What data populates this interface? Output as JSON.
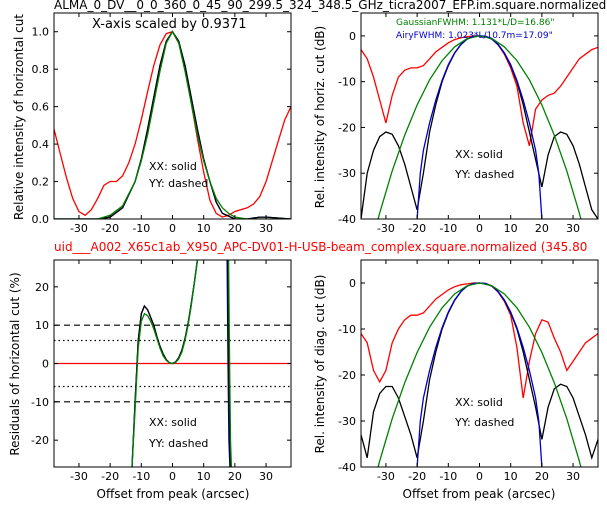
{
  "figure": {
    "top_title": "ALMA_0_DV__0_0_360_0_45_90_299.5_324_348.5_GHz_ticra2007_EFP.im.square.normalized",
    "bottom_title": "uid___A002_X65c1ab_X950_APC-DV01-H-USB-beam_complex.square.normalized (345.80",
    "colors": {
      "red": "#ff0000",
      "blue": "#0000cc",
      "green": "#008000",
      "black": "#000000",
      "title_red": "#ff0000"
    }
  },
  "chart_data": [
    {
      "type": "line",
      "panel": "top-left",
      "xlabel": "",
      "ylabel": "Relative intensity of horizontal cut",
      "xlim": [
        -38,
        38
      ],
      "ylim": [
        0,
        1.1
      ],
      "xticks": [
        "-30",
        "-20",
        "-10",
        "0",
        "10",
        "20",
        "30"
      ],
      "yticks": [
        "0.0",
        "0.2",
        "0.4",
        "0.6",
        "0.8",
        "1.0"
      ],
      "annotations": [
        "X-axis scaled by 0.9371",
        "XX: solid",
        "YY: dashed"
      ],
      "series": [
        {
          "color": "red",
          "x": [
            -38,
            -36,
            -34,
            -32,
            -30,
            -28,
            -26,
            -24,
            -22,
            -20,
            -18,
            -16,
            -14,
            -12,
            -10,
            -8,
            -6,
            -4,
            -2,
            0,
            2,
            4,
            6,
            8,
            10,
            12,
            14,
            16,
            18,
            20,
            22,
            24,
            26,
            28,
            30,
            32,
            34,
            36,
            38
          ],
          "y": [
            0.48,
            0.35,
            0.22,
            0.11,
            0.04,
            0.02,
            0.05,
            0.11,
            0.18,
            0.2,
            0.2,
            0.23,
            0.3,
            0.4,
            0.53,
            0.68,
            0.82,
            0.93,
            0.99,
            1.0,
            0.94,
            0.82,
            0.62,
            0.43,
            0.25,
            0.1,
            0.03,
            0.01,
            0.02,
            0.04,
            0.05,
            0.06,
            0.08,
            0.12,
            0.2,
            0.31,
            0.42,
            0.53,
            0.6
          ]
        },
        {
          "color": "blue",
          "x": [
            -38,
            -30,
            -24,
            -20,
            -16,
            -12,
            -10,
            -8,
            -6,
            -4,
            -2,
            0,
            2,
            4,
            6,
            8,
            10,
            12,
            14,
            16,
            20,
            24,
            28,
            30,
            38
          ],
          "y": [
            0,
            0,
            0.0,
            0.01,
            0.06,
            0.2,
            0.32,
            0.48,
            0.65,
            0.82,
            0.95,
            1.0,
            0.95,
            0.82,
            0.65,
            0.48,
            0.32,
            0.2,
            0.09,
            0.03,
            0.0,
            0.0,
            0.01,
            0.01,
            0
          ]
        },
        {
          "color": "black",
          "x": [
            -38,
            -30,
            -24,
            -20,
            -16,
            -12,
            -10,
            -8,
            -6,
            -4,
            -2,
            0,
            2,
            4,
            6,
            8,
            10,
            12,
            14,
            16,
            20,
            24,
            28,
            30,
            38
          ],
          "y": [
            0,
            0,
            0.0,
            0.01,
            0.06,
            0.2,
            0.32,
            0.48,
            0.65,
            0.82,
            0.95,
            1.0,
            0.95,
            0.82,
            0.65,
            0.48,
            0.32,
            0.2,
            0.09,
            0.03,
            0.0,
            0.0,
            0.01,
            0.01,
            0
          ]
        },
        {
          "color": "green",
          "x": [
            -38,
            -28,
            -24,
            -20,
            -16,
            -12,
            -10,
            -8,
            -6,
            -4,
            -2,
            0,
            2,
            4,
            6,
            8,
            10,
            12,
            14,
            16,
            18,
            20,
            24,
            28,
            38
          ],
          "y": [
            0,
            0,
            0.0,
            0.02,
            0.07,
            0.2,
            0.31,
            0.45,
            0.62,
            0.79,
            0.94,
            1.0,
            0.94,
            0.79,
            0.62,
            0.45,
            0.31,
            0.2,
            0.11,
            0.06,
            0.03,
            0.01,
            0.0,
            0.0,
            0
          ]
        }
      ]
    },
    {
      "type": "line",
      "panel": "top-right",
      "xlabel": "",
      "ylabel": "Rel. intensity of horiz. cut (dB)",
      "xlim": [
        -38,
        38
      ],
      "ylim": [
        -40,
        5
      ],
      "xticks": [
        "-30",
        "-20",
        "-10",
        "0",
        "10",
        "20",
        "30"
      ],
      "yticks": [
        "-40",
        "-30",
        "-20",
        "-10",
        "0"
      ],
      "annotations": [
        "GaussianFWHM: 1.131*L/D=16.86\"",
        "AiryFWHM: 1.023*L/10.7m=17.09\"",
        "XX: solid",
        "YY: dashed"
      ],
      "series": [
        {
          "color": "red",
          "x": [
            -38,
            -36,
            -34,
            -32,
            -30,
            -28,
            -26,
            -24,
            -22,
            -20,
            -18,
            -16,
            -14,
            -12,
            -10,
            -8,
            -6,
            -4,
            -2,
            0,
            2,
            4,
            6,
            8,
            10,
            12,
            14,
            16,
            18,
            20,
            22,
            24,
            26,
            28,
            30,
            32,
            34,
            36,
            38
          ],
          "y": [
            -3,
            -5,
            -9,
            -14,
            -19,
            -13,
            -9,
            -7.5,
            -7,
            -7,
            -6.5,
            -5,
            -3.5,
            -2.5,
            -1.5,
            -0.8,
            -0.4,
            -0.2,
            0,
            0,
            -0.2,
            -0.7,
            -2,
            -4,
            -7,
            -11,
            -19,
            -24,
            -16,
            -14,
            -13,
            -12.5,
            -11,
            -9,
            -7,
            -5,
            -4,
            -3,
            -2.5
          ]
        },
        {
          "color": "black",
          "x": [
            -38,
            -36,
            -34,
            -32,
            -30,
            -28,
            -26,
            -24,
            -22,
            -20,
            -18,
            -16,
            -14,
            -12,
            -10,
            -8,
            -6,
            -4,
            -2,
            0,
            2,
            4,
            6,
            8,
            10,
            12,
            14,
            16,
            18,
            20,
            22,
            24,
            26,
            28,
            30,
            32,
            34,
            36,
            38
          ],
          "y": [
            -40,
            -30,
            -25,
            -22,
            -21,
            -21.5,
            -24,
            -28,
            -33,
            -38,
            -30,
            -21,
            -15,
            -10,
            -6.5,
            -3.8,
            -1.9,
            -0.7,
            -0.1,
            0,
            -0.1,
            -0.7,
            -1.9,
            -3.8,
            -6.5,
            -10,
            -15,
            -21,
            -27,
            -33,
            -26,
            -22,
            -21,
            -21.5,
            -24,
            -28,
            -33,
            -38,
            -40
          ]
        },
        {
          "color": "blue",
          "x": [
            -20,
            -19,
            -18,
            -16,
            -14,
            -12,
            -10,
            -8,
            -6,
            -4,
            -2,
            0,
            2,
            4,
            6,
            8,
            10,
            12,
            14,
            16,
            18,
            19,
            20
          ],
          "y": [
            -40,
            -30,
            -25,
            -19,
            -14,
            -9.7,
            -6.3,
            -3.7,
            -1.9,
            -0.7,
            -0.1,
            0,
            -0.1,
            -0.7,
            -1.9,
            -3.7,
            -6.3,
            -9.7,
            -14,
            -19,
            -25,
            -30,
            -40
          ]
        },
        {
          "color": "green",
          "x": [
            -36,
            -32,
            -28,
            -24,
            -20,
            -16,
            -12,
            -8,
            -4,
            0,
            4,
            8,
            12,
            16,
            20,
            24,
            28,
            32,
            36
          ],
          "y": [
            -49,
            -38.7,
            -29.5,
            -21.7,
            -15.1,
            -9.6,
            -5.4,
            -2.4,
            -0.6,
            0,
            -0.6,
            -2.4,
            -5.4,
            -9.6,
            -15.1,
            -21.7,
            -29.5,
            -38.7,
            -49
          ]
        }
      ]
    },
    {
      "type": "line",
      "panel": "bottom-left",
      "xlabel": "Offset from peak (arcsec)",
      "ylabel": "Residuals of horizontal cut (%)",
      "xlim": [
        -38,
        38
      ],
      "ylim": [
        -27,
        27
      ],
      "xticks": [
        "-30",
        "-20",
        "-10",
        "0",
        "10",
        "20",
        "30"
      ],
      "yticks": [
        "-20",
        "-10",
        "0",
        "10",
        "20"
      ],
      "hlines_dashed": [
        10,
        -10
      ],
      "hlines_dotted": [
        6,
        -6
      ],
      "annotations": [
        "XX: solid",
        "YY: dashed"
      ],
      "series": [
        {
          "color": "red",
          "x": [
            -38,
            38
          ],
          "y": [
            0,
            0
          ]
        },
        {
          "color": "blue",
          "x": [
            -13,
            -12,
            -11,
            -10,
            -9,
            -8,
            -7,
            -6,
            -5,
            -4,
            -3,
            -2,
            -1,
            0,
            1,
            2,
            3,
            4,
            5,
            6,
            7,
            8
          ],
          "y": [
            -27,
            -10,
            6,
            13,
            15,
            14,
            12,
            10,
            7,
            4.5,
            2.5,
            1,
            0.2,
            0,
            0.4,
            1.5,
            3.5,
            6.5,
            10.5,
            15.5,
            21,
            27
          ]
        },
        {
          "color": "black",
          "x": [
            -13,
            -12,
            -11,
            -10,
            -9,
            -8,
            -7,
            -6,
            -5,
            -4,
            -3,
            -2,
            -1,
            0,
            1,
            2,
            3,
            4,
            5,
            6,
            7,
            8
          ],
          "y": [
            -27,
            -10,
            6,
            13,
            15,
            14,
            12,
            10,
            7,
            4.5,
            2.5,
            1,
            0.2,
            0,
            0.4,
            1.5,
            3.5,
            6.5,
            10.5,
            15.5,
            21,
            27
          ]
        },
        {
          "color": "green",
          "x": [
            -13,
            -12,
            -11,
            -10,
            -9,
            -8,
            -7,
            -6,
            -5,
            -4,
            -3,
            -2,
            -1,
            0,
            1,
            2,
            3,
            4,
            5,
            6,
            7,
            8
          ],
          "y": [
            -27,
            -12,
            4,
            11,
            13,
            12.5,
            11,
            9,
            6.5,
            4,
            2,
            0.8,
            0.2,
            0,
            0.3,
            1.2,
            3,
            6,
            10,
            15,
            21,
            27
          ]
        },
        {
          "color": "blue",
          "x": [
            17.5,
            17.8,
            18.1,
            18.4
          ],
          "y": [
            27,
            0,
            -20,
            -27
          ]
        },
        {
          "color": "black",
          "x": [
            17.7,
            18.0,
            18.3,
            18.6
          ],
          "y": [
            27,
            0,
            -20,
            -27
          ]
        },
        {
          "color": "green",
          "x": [
            18.0,
            18.3,
            18.6,
            18.9
          ],
          "y": [
            27,
            0,
            -20,
            -27
          ]
        }
      ]
    },
    {
      "type": "line",
      "panel": "bottom-right",
      "xlabel": "Offset from peak (arcsec)",
      "ylabel": "Rel. intensity of diag. cut (dB)",
      "xlim": [
        -38,
        38
      ],
      "ylim": [
        -40,
        5
      ],
      "xticks": [
        "-30",
        "-20",
        "-10",
        "0",
        "10",
        "20",
        "30"
      ],
      "yticks": [
        "-40",
        "-30",
        "-20",
        "-10",
        "0"
      ],
      "annotations": [
        "XX: solid",
        "YY: dashed"
      ],
      "series": [
        {
          "color": "red",
          "x": [
            -38,
            -36,
            -34,
            -32,
            -30,
            -28,
            -26,
            -24,
            -22,
            -20,
            -18,
            -16,
            -14,
            -12,
            -10,
            -8,
            -6,
            -4,
            -2,
            0,
            2,
            4,
            6,
            8,
            10,
            12,
            14,
            16,
            18,
            20,
            22,
            24,
            26,
            28,
            30,
            32,
            34,
            36,
            38
          ],
          "y": [
            -11,
            -13,
            -19,
            -21.5,
            -19,
            -13,
            -10,
            -8,
            -7,
            -7,
            -6.5,
            -5,
            -3.5,
            -2.5,
            -1.5,
            -0.8,
            -0.4,
            -0.2,
            0,
            0,
            -0.2,
            -0.7,
            -2,
            -4,
            -7,
            -14,
            -25,
            -17,
            -11,
            -8,
            -8.5,
            -12,
            -15,
            -19,
            -17,
            -15,
            -13,
            -12,
            -11
          ]
        },
        {
          "color": "black",
          "x": [
            -38,
            -36,
            -34,
            -32,
            -30,
            -28,
            -26,
            -24,
            -22,
            -20,
            -18,
            -16,
            -14,
            -12,
            -10,
            -8,
            -6,
            -4,
            -2,
            0,
            2,
            4,
            6,
            8,
            10,
            12,
            14,
            16,
            18,
            20,
            22,
            24,
            26,
            28,
            30,
            32,
            34,
            36,
            38
          ],
          "y": [
            -33,
            -38,
            -28,
            -24,
            -22.5,
            -22.5,
            -25,
            -29,
            -33,
            -38,
            -30,
            -21,
            -15,
            -10,
            -6.5,
            -3.8,
            -1.9,
            -0.7,
            -0.1,
            0,
            -0.1,
            -0.7,
            -1.9,
            -3.8,
            -6.5,
            -10,
            -15,
            -21,
            -27,
            -34,
            -27,
            -23,
            -22,
            -22.5,
            -25,
            -29,
            -33,
            -38,
            -34
          ]
        },
        {
          "color": "blue",
          "x": [
            -20,
            -19,
            -18,
            -16,
            -14,
            -12,
            -10,
            -8,
            -6,
            -4,
            -2,
            0,
            2,
            4,
            6,
            8,
            10,
            12,
            14,
            16,
            18,
            19,
            20
          ],
          "y": [
            -40,
            -30,
            -25,
            -19,
            -14,
            -9.7,
            -6.3,
            -3.7,
            -1.9,
            -0.7,
            -0.1,
            0,
            -0.1,
            -0.7,
            -1.9,
            -3.7,
            -6.3,
            -9.7,
            -14,
            -19,
            -25,
            -30,
            -40
          ]
        },
        {
          "color": "green",
          "x": [
            -36,
            -32,
            -28,
            -24,
            -20,
            -16,
            -12,
            -8,
            -4,
            0,
            4,
            8,
            12,
            16,
            20,
            24,
            28,
            32,
            36
          ],
          "y": [
            -49,
            -38.7,
            -29.5,
            -21.7,
            -15.1,
            -9.6,
            -5.4,
            -2.4,
            -0.6,
            0,
            -0.6,
            -2.4,
            -5.4,
            -9.6,
            -15.1,
            -21.7,
            -29.5,
            -38.7,
            -49
          ]
        }
      ]
    }
  ]
}
